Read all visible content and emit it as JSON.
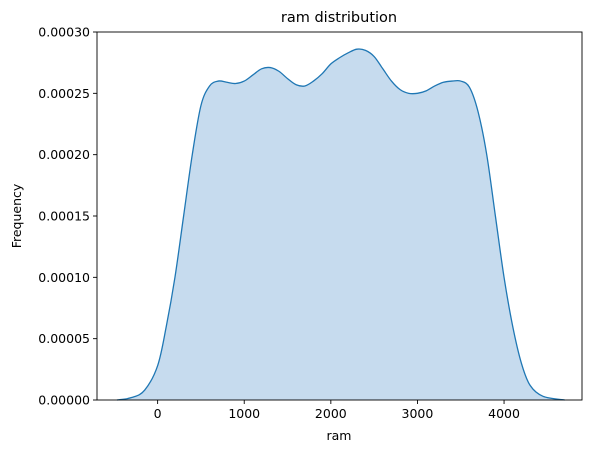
{
  "chart_data": {
    "type": "area",
    "title": "ram distribution",
    "xlabel": "ram",
    "ylabel": "Frequency",
    "xlim": [
      -700,
      4900
    ],
    "ylim": [
      0,
      0.0003
    ],
    "x_ticks": [
      0,
      1000,
      2000,
      3000,
      4000
    ],
    "x_tick_labels": [
      "0",
      "1000",
      "2000",
      "3000",
      "4000"
    ],
    "y_ticks": [
      0,
      5e-05,
      0.0001,
      0.00015,
      0.0002,
      0.00025,
      0.0003
    ],
    "y_tick_labels": [
      "0.00000",
      "0.00005",
      "0.00010",
      "0.00015",
      "0.00020",
      "0.00025",
      "0.00030"
    ],
    "grid": false,
    "colors": {
      "line": "#1f77b4",
      "fill": "#c6dbee"
    },
    "series": [
      {
        "x": [
          -470,
          -300,
          -150,
          0,
          100,
          200,
          300,
          400,
          500,
          600,
          700,
          800,
          900,
          1000,
          1100,
          1200,
          1300,
          1400,
          1500,
          1600,
          1700,
          1800,
          1900,
          2000,
          2100,
          2200,
          2300,
          2400,
          2500,
          2600,
          2700,
          2800,
          2900,
          3000,
          3100,
          3200,
          3300,
          3400,
          3500,
          3600,
          3700,
          3800,
          3900,
          4000,
          4100,
          4200,
          4300,
          4450,
          4700
        ],
        "values": [
          0.0,
          2e-06,
          8e-06,
          2.8e-05,
          6e-05,
          0.0001,
          0.00015,
          0.0002,
          0.00024,
          0.000256,
          0.00026,
          0.000259,
          0.000258,
          0.00026,
          0.000265,
          0.00027,
          0.000271,
          0.000268,
          0.000262,
          0.000257,
          0.000256,
          0.00026,
          0.000266,
          0.000274,
          0.000279,
          0.000283,
          0.000286,
          0.000285,
          0.00028,
          0.00027,
          0.00026,
          0.000253,
          0.00025,
          0.00025,
          0.000252,
          0.000256,
          0.000259,
          0.00026,
          0.00026,
          0.000255,
          0.000235,
          0.0002,
          0.00015,
          0.0001,
          6e-05,
          3e-05,
          1.2e-05,
          3e-06,
          0.0
        ]
      }
    ]
  }
}
